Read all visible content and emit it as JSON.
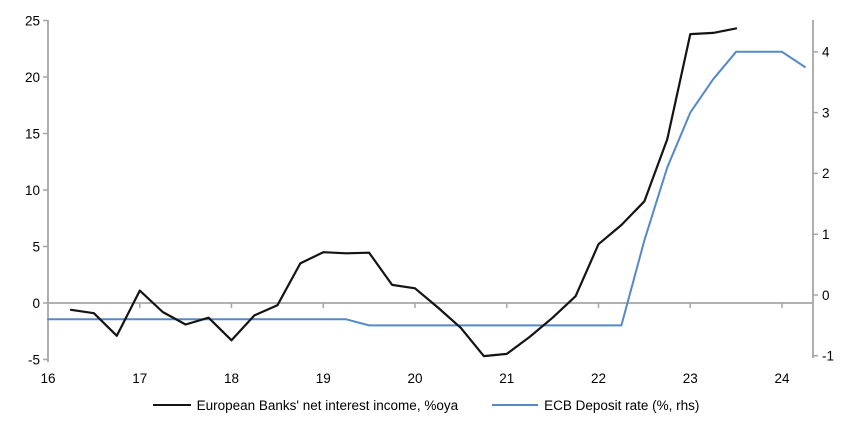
{
  "chart_data": {
    "type": "line",
    "title": "",
    "xlabel": "",
    "ylabel_left": "",
    "ylabel_right": "",
    "x_range": [
      16,
      24.35
    ],
    "x_tick_labels": [
      "16",
      "17",
      "18",
      "19",
      "20",
      "21",
      "22",
      "23",
      "24"
    ],
    "left_axis": {
      "ticks": [
        25,
        20,
        15,
        10,
        5,
        0,
        -5
      ],
      "range": [
        -5,
        25
      ]
    },
    "right_axis": {
      "ticks": [
        4,
        3,
        2,
        1,
        0,
        -1
      ],
      "range": [
        -1,
        4.55
      ]
    },
    "grid": "off",
    "legend_position": "bottom-center",
    "axis_color": "#A6A6A6",
    "series": [
      {
        "name": "European Banks' net interest income, %oya",
        "axis": "left",
        "color": "#141414",
        "x": [
          16.25,
          16.5,
          16.75,
          17.0,
          17.25,
          17.5,
          17.75,
          18.0,
          18.25,
          18.5,
          18.75,
          19.0,
          19.25,
          19.5,
          19.75,
          20.0,
          20.25,
          20.5,
          20.75,
          21.0,
          21.25,
          21.5,
          21.75,
          22.0,
          22.25,
          22.5,
          22.75,
          23.0,
          23.25,
          23.5
        ],
        "values": [
          -0.6,
          -0.9,
          -2.9,
          1.1,
          -0.8,
          -1.9,
          -1.3,
          -3.3,
          -1.1,
          -0.2,
          3.5,
          4.5,
          4.4,
          4.45,
          1.6,
          1.3,
          -0.4,
          -2.2,
          -4.7,
          -4.5,
          -3.0,
          -1.3,
          0.6,
          5.2,
          6.9,
          9.0,
          14.5,
          23.8,
          23.9,
          24.3
        ]
      },
      {
        "name": "ECB Deposit rate (%, rhs)",
        "axis": "right",
        "color": "#5489C8",
        "x": [
          16.0,
          19.25,
          19.5,
          22.25,
          22.5,
          22.75,
          23.0,
          23.25,
          23.5,
          24.0,
          24.25
        ],
        "values": [
          -0.4,
          -0.4,
          -0.5,
          -0.5,
          0.9,
          2.1,
          3.0,
          3.55,
          4.0,
          4.0,
          3.75
        ]
      }
    ]
  }
}
